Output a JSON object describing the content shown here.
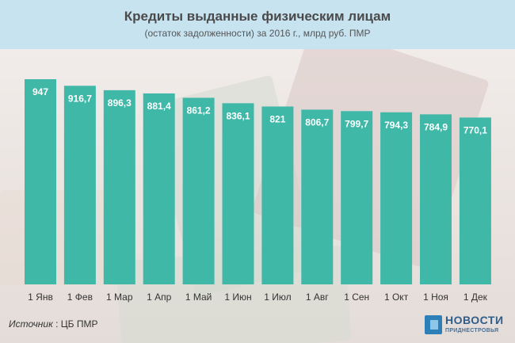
{
  "header": {
    "title": "Кредиты выданные физическим лицам",
    "subtitle": "(остаток задолженности) за 2016 г., млрд руб. ПМР"
  },
  "chart_data": {
    "type": "bar",
    "title": "Кредиты выданные физическим лицам",
    "subtitle": "(остаток задолженности) за 2016 г., млрд руб. ПМР",
    "categories": [
      "1 Янв",
      "1 Фев",
      "1 Мар",
      "1 Апр",
      "1 Май",
      "1 Июн",
      "1 Июл",
      "1 Авг",
      "1 Сен",
      "1 Окт",
      "1 Ноя",
      "1 Дек"
    ],
    "values": [
      947,
      916.7,
      896.3,
      881.4,
      861.2,
      836.1,
      821,
      806.7,
      799.7,
      794.3,
      784.9,
      770.1
    ],
    "labels": [
      "947",
      "916,7",
      "896,3",
      "881,4",
      "861,2",
      "836,1",
      "821",
      "806,7",
      "799,7",
      "794,3",
      "784,9",
      "770,1"
    ],
    "xlabel": "",
    "ylabel": "",
    "ylim": [
      0,
      947
    ],
    "grid": false,
    "bar_color": "#40b8a8"
  },
  "footer": {
    "source_label": "Источник",
    "source_value": ": ЦБ ПМР"
  },
  "logo": {
    "name": "НОВОСТИ",
    "sub": "ПРИДНЕСТРОВЬЯ"
  }
}
